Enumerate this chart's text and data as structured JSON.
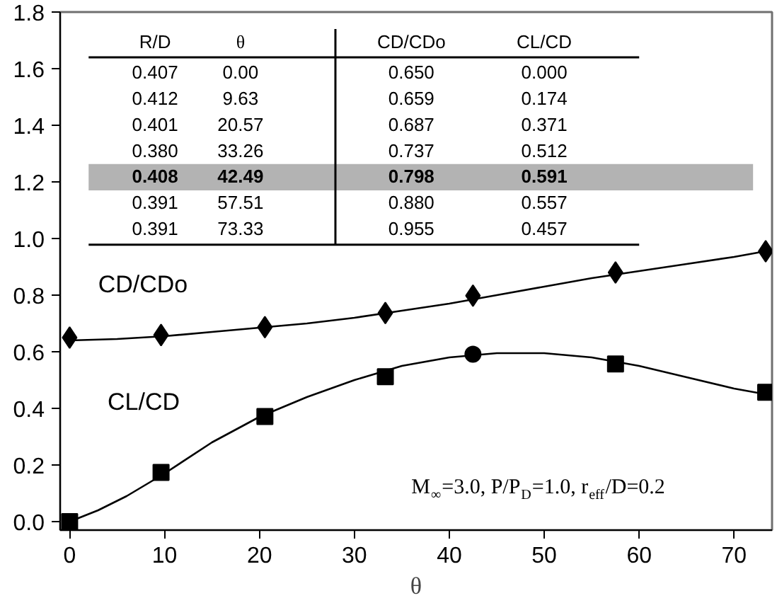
{
  "chart_data": {
    "type": "scatter",
    "xlabel": "θ",
    "xlim": [
      -1,
      74
    ],
    "ylim": [
      -0.03,
      1.8
    ],
    "xticks": [
      0,
      10,
      20,
      30,
      40,
      50,
      60,
      70
    ],
    "yticks": [
      {
        "value": 0,
        "label": "0.0"
      },
      {
        "value": 0.2,
        "label": "0.2"
      },
      {
        "value": 0.4,
        "label": "0.4"
      },
      {
        "value": 0.6,
        "label": "0.6"
      },
      {
        "value": 0.8,
        "label": "0.8"
      },
      {
        "value": 1.0,
        "label": "1.0"
      },
      {
        "value": 1.2,
        "label": "1.2"
      },
      {
        "value": 1.4,
        "label": "1.4"
      },
      {
        "value": 1.6,
        "label": "1.6"
      },
      {
        "value": 1.8,
        "label": "1.8"
      }
    ],
    "grid": false,
    "legend": false,
    "series": [
      {
        "name": "CD/CDo",
        "type": "scatter",
        "marker": "diamond",
        "color": "#000000",
        "x": [
          0.0,
          9.63,
          20.57,
          33.26,
          42.49,
          57.51,
          73.33
        ],
        "values": [
          0.65,
          0.659,
          0.687,
          0.737,
          0.798,
          0.88,
          0.955
        ]
      },
      {
        "name": "CL/CD",
        "type": "scatter",
        "marker": "square",
        "color": "#000000",
        "x": [
          0.0,
          9.63,
          20.57,
          33.26,
          42.49,
          57.51,
          73.33
        ],
        "values": [
          0.0,
          0.174,
          0.371,
          0.512,
          null,
          0.557,
          0.457
        ]
      },
      {
        "type": "scatter",
        "marker": "circle",
        "color": "#000000",
        "x": [
          42.49
        ],
        "values": [
          0.591
        ]
      },
      {
        "type": "line",
        "marker": "none",
        "color": "#000000",
        "x": [
          0,
          5,
          10,
          15,
          20,
          25,
          30,
          35,
          40,
          45,
          50,
          55,
          60,
          65,
          70,
          73.3
        ],
        "values": [
          0.64,
          0.645,
          0.655,
          0.67,
          0.685,
          0.7,
          0.72,
          0.745,
          0.77,
          0.8,
          0.83,
          0.86,
          0.885,
          0.91,
          0.935,
          0.955
        ]
      },
      {
        "type": "line",
        "marker": "none",
        "color": "#000000",
        "x": [
          0,
          3,
          6,
          10,
          15,
          20,
          25,
          30,
          35,
          40,
          45,
          50,
          55,
          60,
          65,
          70,
          73.3
        ],
        "values": [
          0.0,
          0.04,
          0.09,
          0.17,
          0.28,
          0.37,
          0.44,
          0.5,
          0.55,
          0.58,
          0.595,
          0.595,
          0.58,
          0.55,
          0.51,
          0.47,
          0.45
        ]
      }
    ],
    "bands": [
      {
        "axis": "y",
        "from": 1.17,
        "to": 1.263,
        "color": "#b3b3b3"
      }
    ],
    "ref_lines": [
      {
        "axis": "y",
        "value": 1.64,
        "color": "#000000"
      },
      {
        "axis": "y",
        "value": 0.978,
        "color": "#000000"
      },
      {
        "axis": "x",
        "value": 28,
        "color": "#000000"
      }
    ],
    "annotations": [
      "R/D",
      "θ",
      "CD/CDo",
      "CL/CD",
      "0.407",
      "0.00",
      "0.650",
      "0.000",
      "0.412",
      "9.63",
      "0.659",
      "0.174",
      "0.401",
      "20.57",
      "0.687",
      "0.371",
      "0.380",
      "33.26",
      "0.737",
      "0.512",
      "0.408",
      "42.49",
      "0.798",
      "0.591",
      "0.391",
      "57.51",
      "0.880",
      "0.557",
      "0.391",
      "73.33",
      "0.955",
      "0.457",
      "M$_{∞}$=3.0, P/P$_{D}$=1.0, r$_{eff}$/D=0.2"
    ]
  }
}
